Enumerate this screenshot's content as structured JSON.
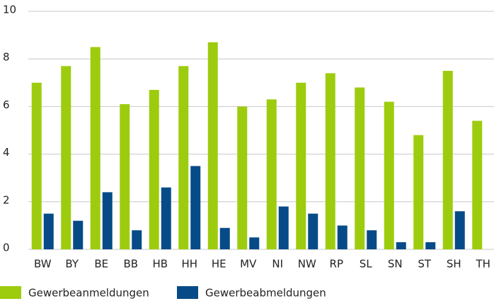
{
  "chart_data": {
    "type": "bar",
    "categories": [
      "BW",
      "BY",
      "BE",
      "BB",
      "HB",
      "HH",
      "HE",
      "MV",
      "NI",
      "NW",
      "RP",
      "SL",
      "SN",
      "ST",
      "SH",
      "TH"
    ],
    "series": [
      {
        "name": "Gewerbeanmeldungen",
        "color": "#9dcc0e",
        "values": [
          7.0,
          7.7,
          8.5,
          6.1,
          6.7,
          7.7,
          8.7,
          6.0,
          6.3,
          7.0,
          7.4,
          6.8,
          6.2,
          4.8,
          7.5,
          5.4
        ]
      },
      {
        "name": "Gewerbeabmeldungen",
        "color": "#064b88",
        "values": [
          1.5,
          1.2,
          2.4,
          0.8,
          2.6,
          3.5,
          0.9,
          0.5,
          1.8,
          1.5,
          1.0,
          0.8,
          0.3,
          0.3,
          1.6,
          null
        ]
      }
    ],
    "ylim": [
      0,
      10
    ],
    "yticks": [
      0,
      2,
      4,
      6,
      8,
      10
    ],
    "grid": true
  }
}
